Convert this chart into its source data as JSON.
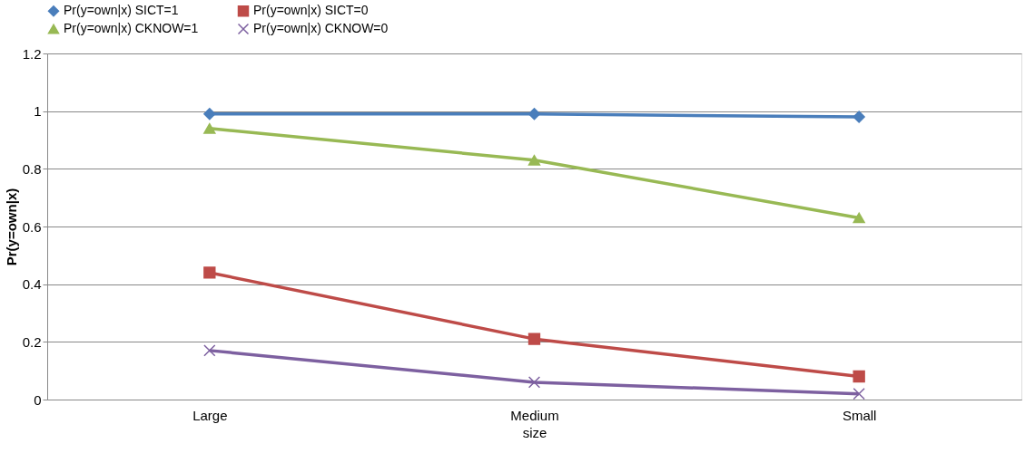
{
  "chart_data": {
    "type": "line",
    "xlabel": "size",
    "ylabel": "Pr(y=own|x)",
    "categories": [
      "Large",
      "Medium",
      "Small"
    ],
    "series": [
      {
        "name": "Pr(y=own|x) SICT=1",
        "color": "#4a7ebb",
        "marker": "diamond",
        "values": [
          0.99,
          0.99,
          0.98
        ]
      },
      {
        "name": "Pr(y=own|x) SICT=0",
        "color": "#be4b48",
        "marker": "square",
        "values": [
          0.44,
          0.21,
          0.08
        ]
      },
      {
        "name": "Pr(y=own|x) CKNOW=1",
        "color": "#98b954",
        "marker": "triangle",
        "values": [
          0.94,
          0.83,
          0.63
        ]
      },
      {
        "name": "Pr(y=own|x) CKNOW=0",
        "color": "#7d60a0",
        "marker": "cross",
        "values": [
          0.17,
          0.06,
          0.02
        ]
      }
    ],
    "ylim": [
      0,
      1.2
    ],
    "yticks": [
      0,
      0.2,
      0.4,
      0.6,
      0.8,
      1,
      1.2
    ],
    "grid": "y",
    "legend": "top",
    "line_style": "solid"
  }
}
